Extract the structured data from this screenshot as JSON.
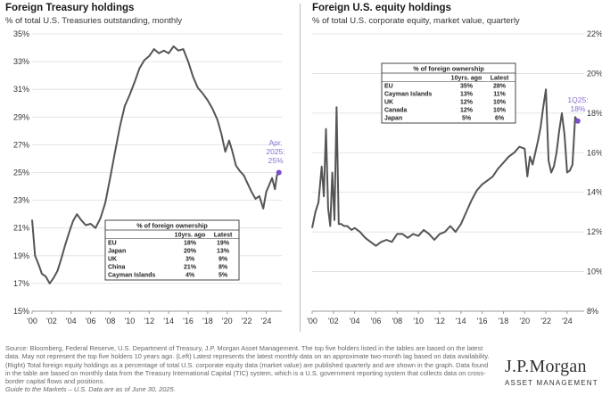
{
  "left": {
    "title": "Foreign Treasury holdings",
    "subtitle": "% of total U.S. Treasuries outstanding, monthly",
    "annotation_lines": [
      "Apr.",
      "2025:",
      "25%"
    ],
    "table": {
      "title": "% of foreign ownership",
      "headers": [
        "",
        "10yrs. ago",
        "Latest"
      ],
      "rows": [
        [
          "EU",
          "18%",
          "19%"
        ],
        [
          "Japan",
          "20%",
          "13%"
        ],
        [
          "UK",
          "3%",
          "9%"
        ],
        [
          "China",
          "21%",
          "8%"
        ],
        [
          "Cayman Islands",
          "4%",
          "5%"
        ]
      ]
    }
  },
  "right": {
    "title": "Foreign U.S. equity holdings",
    "subtitle": "% of total U.S. corporate equity, market value, quarterly",
    "annotation_lines": [
      "1Q25:",
      "18%"
    ],
    "table": {
      "title": "% of foreign ownership",
      "headers": [
        "",
        "10yrs. ago",
        "Latest"
      ],
      "rows": [
        [
          "EU",
          "35%",
          "28%"
        ],
        [
          "Cayman Islands",
          "13%",
          "11%"
        ],
        [
          "UK",
          "12%",
          "10%"
        ],
        [
          "Canada",
          "12%",
          "10%"
        ],
        [
          "Japan",
          "5%",
          "6%"
        ]
      ]
    }
  },
  "footer": {
    "source": "Source: Bloomberg, Federal Reserve, U.S. Department of Treasury, J.P. Morgan Asset Management. The top five holders listed in the tables are based on the latest data. May not represent the top five holders 10 years ago. (Left) Latest represents the latest monthly data on an approximate two-month lag based on data availability. (Right) Total foreign equity holdings as a percentage of total U.S. corporate equity data (market value) are published quarterly and are shown in the graph. Data found in the table are based on monthly data from the Treasury International Capital (TIC) system, which is a U.S. government reporting system that collects data on cross-border capital flows and positions.",
    "guide": "Guide to the Markets – U.S. Data are as of June 30, 2025."
  },
  "logo": {
    "name": "J.P.Morgan",
    "subtitle": "ASSET MANAGEMENT"
  },
  "colors": {
    "line": "#555555",
    "marker": "#7b4fc9",
    "annotation": "#8a6fd1",
    "grid": "#dddddd"
  },
  "chart_data": [
    {
      "type": "line",
      "title": "Foreign Treasury holdings",
      "subtitle": "% of total U.S. Treasuries outstanding, monthly",
      "ylim": [
        15,
        35
      ],
      "yticks": [
        15,
        17,
        19,
        21,
        23,
        25,
        27,
        29,
        31,
        33,
        35
      ],
      "ytick_labels": [
        "15%",
        "17%",
        "19%",
        "21%",
        "23%",
        "25%",
        "27%",
        "29%",
        "31%",
        "33%",
        "35%"
      ],
      "xlim": [
        2000,
        2025.6
      ],
      "xticks": [
        2000,
        2002,
        2004,
        2006,
        2008,
        2010,
        2012,
        2014,
        2016,
        2018,
        2020,
        2022,
        2024
      ],
      "xtick_labels": [
        "'00",
        "'02",
        "'04",
        "'06",
        "'08",
        "'10",
        "'12",
        "'14",
        "'16",
        "'18",
        "'20",
        "'22",
        "'24"
      ],
      "grid": true,
      "series": [
        {
          "x": [
            2000.0,
            2000.3,
            2000.7,
            2001.0,
            2001.4,
            2001.8,
            2002.2,
            2002.6,
            2003.0,
            2003.4,
            2003.8,
            2004.2,
            2004.6,
            2005.0,
            2005.5,
            2006.0,
            2006.5,
            2007.0,
            2007.5,
            2008.0,
            2008.5,
            2009.0,
            2009.5,
            2010.0,
            2010.5,
            2011.0,
            2011.5,
            2012.0,
            2012.5,
            2013.0,
            2013.5,
            2014.0,
            2014.5,
            2015.0,
            2015.5,
            2016.0,
            2016.5,
            2017.0,
            2017.5,
            2018.0,
            2018.5,
            2019.0,
            2019.4,
            2019.8,
            2020.2,
            2020.5,
            2020.9,
            2021.3,
            2021.7,
            2022.1,
            2022.5,
            2022.9,
            2023.3,
            2023.7,
            2024.0,
            2024.3,
            2024.6,
            2024.9,
            2025.1,
            2025.3
          ],
          "y": [
            21.6,
            19.0,
            18.3,
            17.7,
            17.5,
            17.0,
            17.4,
            17.9,
            18.8,
            19.8,
            20.7,
            21.5,
            22.0,
            21.6,
            21.2,
            21.3,
            21.0,
            21.7,
            22.8,
            24.6,
            26.5,
            28.3,
            29.8,
            30.6,
            31.5,
            32.5,
            33.1,
            33.4,
            33.9,
            33.6,
            33.8,
            33.6,
            34.1,
            33.8,
            33.9,
            33.0,
            31.9,
            31.1,
            30.7,
            30.2,
            29.6,
            28.8,
            27.8,
            26.5,
            27.3,
            26.6,
            25.5,
            25.1,
            24.8,
            24.2,
            23.6,
            23.1,
            23.3,
            22.4,
            23.6,
            24.1,
            24.6,
            23.8,
            24.8,
            25.0
          ]
        }
      ],
      "annotation": "Apr. 2025: 25%",
      "end_marker": {
        "x": 2025.3,
        "y": 25.0
      }
    },
    {
      "type": "line",
      "title": "Foreign U.S. equity holdings",
      "subtitle": "% of total U.S. corporate equity, market value, quarterly",
      "ylim": [
        8,
        22
      ],
      "yticks": [
        8,
        10,
        12,
        14,
        16,
        18,
        20,
        22
      ],
      "ytick_labels": [
        "8%",
        "10%",
        "12%",
        "14%",
        "16%",
        "18%",
        "20%",
        "22%"
      ],
      "xlim": [
        2000,
        2025.6
      ],
      "xticks": [
        2000,
        2002,
        2004,
        2006,
        2008,
        2010,
        2012,
        2014,
        2016,
        2018,
        2020,
        2022,
        2024
      ],
      "xtick_labels": [
        "'00",
        "'02",
        "'04",
        "'06",
        "'08",
        "'10",
        "'12",
        "'14",
        "'16",
        "'18",
        "'20",
        "'22",
        "'24"
      ],
      "grid": true,
      "series": [
        {
          "x": [
            2000.0,
            2000.3,
            2000.6,
            2000.9,
            2001.1,
            2001.3,
            2001.5,
            2001.7,
            2001.9,
            2002.1,
            2002.3,
            2002.5,
            2002.75,
            2003.0,
            2003.3,
            2003.7,
            2004.0,
            2004.5,
            2005.0,
            2005.5,
            2006.0,
            2006.5,
            2007.0,
            2007.5,
            2008.0,
            2008.5,
            2009.0,
            2009.5,
            2010.0,
            2010.5,
            2011.0,
            2011.5,
            2012.0,
            2012.5,
            2013.0,
            2013.5,
            2014.0,
            2014.5,
            2015.0,
            2015.5,
            2016.0,
            2016.5,
            2017.0,
            2017.5,
            2018.0,
            2018.5,
            2019.0,
            2019.5,
            2020.0,
            2020.25,
            2020.5,
            2020.75,
            2021.0,
            2021.25,
            2021.5,
            2021.75,
            2022.0,
            2022.25,
            2022.5,
            2022.75,
            2023.0,
            2023.25,
            2023.5,
            2023.75,
            2024.0,
            2024.25,
            2024.5,
            2024.75,
            2025.0
          ],
          "y": [
            12.2,
            13.0,
            13.5,
            15.3,
            13.8,
            17.2,
            13.2,
            12.3,
            15.0,
            12.6,
            18.3,
            12.4,
            12.4,
            12.3,
            12.3,
            12.1,
            12.2,
            12.0,
            11.7,
            11.5,
            11.3,
            11.5,
            11.6,
            11.5,
            11.9,
            11.9,
            11.7,
            11.9,
            11.8,
            12.1,
            11.9,
            11.6,
            11.9,
            12.0,
            12.3,
            12.0,
            12.4,
            13.0,
            13.6,
            14.1,
            14.4,
            14.6,
            14.8,
            15.2,
            15.5,
            15.8,
            16.0,
            16.3,
            16.2,
            14.8,
            15.8,
            15.4,
            16.0,
            16.6,
            17.3,
            18.3,
            19.2,
            15.6,
            15.0,
            15.3,
            16.0,
            17.1,
            18.0,
            16.9,
            15.0,
            15.1,
            15.4,
            17.8,
            17.6
          ]
        }
      ],
      "annotation": "1Q25: 18%",
      "end_marker": {
        "x": 2025.0,
        "y": 17.6
      }
    }
  ]
}
